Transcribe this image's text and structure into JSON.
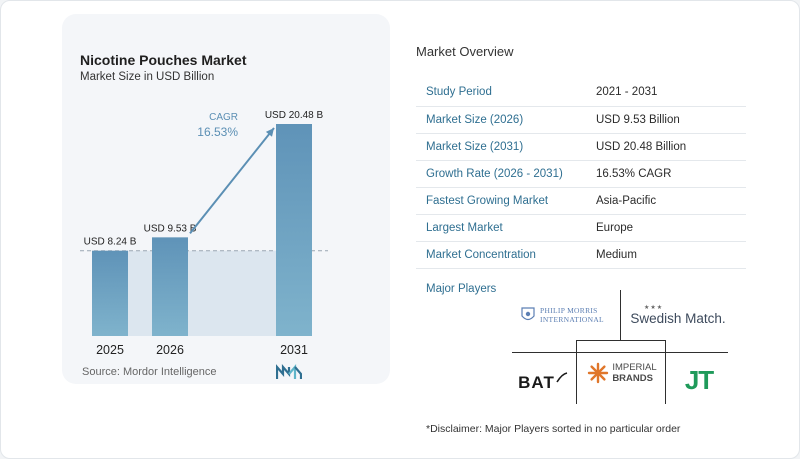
{
  "chart_data": {
    "type": "bar",
    "title": "Nicotine Pouches Market",
    "subtitle": "Market Size in USD Billion",
    "categories": [
      "2025",
      "2026",
      "2031"
    ],
    "values": [
      8.24,
      9.53,
      20.48
    ],
    "data_labels": [
      "USD 8.24 B",
      "USD 9.53 B",
      "USD 20.48 B"
    ],
    "unit": "USD Billion",
    "cagr_label": "CAGR",
    "cagr_value": "16.53%",
    "source": "Source: Mordor Intelligence",
    "colors": {
      "bar": "#6e9fc0",
      "bar_top": "#5f93b8",
      "band": "#dce6ef",
      "arrow": "#5b8fb4",
      "cagr_text": "#5b8fb4"
    }
  },
  "overview": {
    "title": "Market Overview",
    "rows": [
      {
        "label": "Study Period",
        "value": "2021 - 2031"
      },
      {
        "label": "Market Size (2026)",
        "value": "USD 9.53 Billion"
      },
      {
        "label": "Market Size (2031)",
        "value": "USD 20.48 Billion"
      },
      {
        "label": "Growth Rate (2026 - 2031)",
        "value": "16.53% CAGR"
      },
      {
        "label": "Fastest Growing Market",
        "value": "Asia-Pacific"
      },
      {
        "label": "Largest Market",
        "value": "Europe"
      },
      {
        "label": "Market Concentration",
        "value": "Medium"
      }
    ]
  },
  "players": {
    "title": "Major Players",
    "logos": [
      {
        "name": "philip-morris",
        "text_top": "PHILIP MORRIS",
        "text_bottom": "INTERNATIONAL"
      },
      {
        "name": "swedish-match",
        "text": "Swedish Match."
      },
      {
        "name": "bat",
        "text": "BAT"
      },
      {
        "name": "imperial-brands",
        "text_top": "IMPERIAL",
        "text_bottom": "BRANDS"
      },
      {
        "name": "jt",
        "text": "JT"
      }
    ]
  },
  "disclaimer": "*Disclaimer: Major Players sorted in no particular order"
}
